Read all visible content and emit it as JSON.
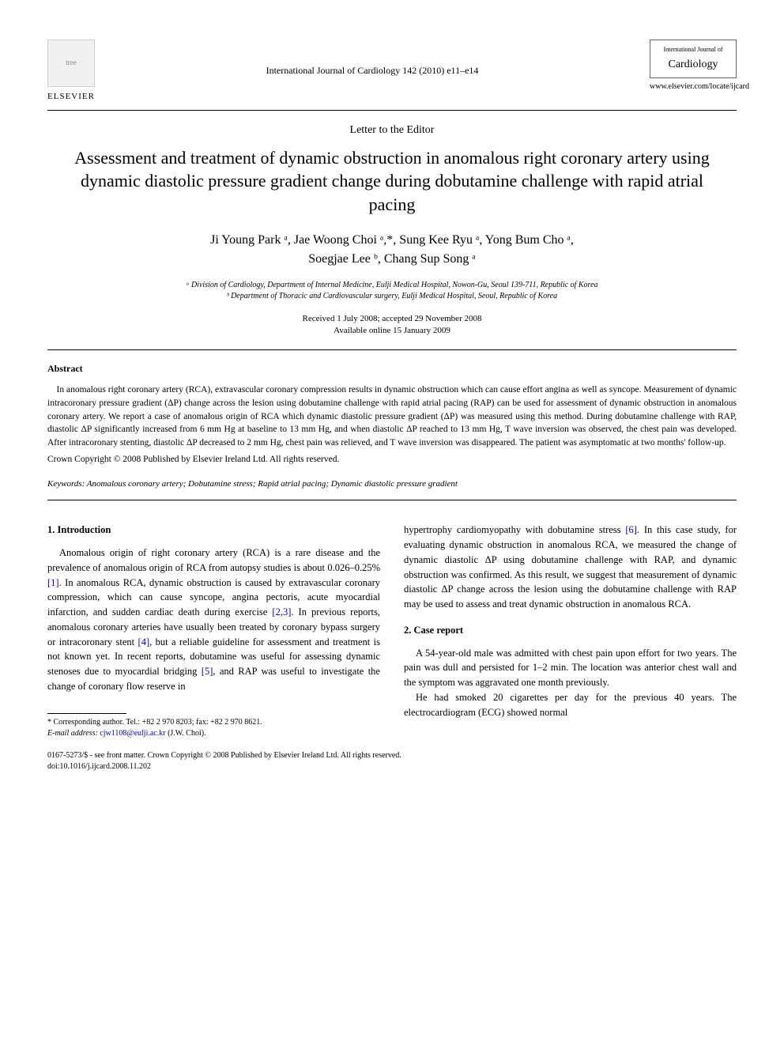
{
  "publisher": {
    "name": "ELSEVIER",
    "logo_alt": "tree"
  },
  "journal_ref": "International Journal of Cardiology 142 (2010) e11–e14",
  "journal_cover": {
    "supertitle": "International Journal of",
    "title": "Cardiology",
    "url": "www.elsevier.com/locate/ijcard"
  },
  "article_type": "Letter to the Editor",
  "title": "Assessment and treatment of dynamic obstruction in anomalous right coronary artery using dynamic diastolic pressure gradient change during dobutamine challenge with rapid atrial pacing",
  "authors_line1": "Ji Young Park ᵃ, Jae Woong Choi ᵃ,*, Sung Kee Ryu ᵃ, Yong Bum Cho ᵃ,",
  "authors_line2": "Soegjae Lee ᵇ, Chang Sup Song ᵃ",
  "affiliations": {
    "a": "ᵃ Division of Cardiology, Department of Internal Medicine, Eulji Medical Hospital, Nowon-Gu, Seoul 139-711, Republic of Korea",
    "b": "ᵇ Department of Thoracic and Cardiovascular surgery, Eulji Medical Hospital, Seoul, Republic of Korea"
  },
  "dates": {
    "received_accepted": "Received 1 July 2008; accepted 29 November 2008",
    "online": "Available online 15 January 2009"
  },
  "abstract": {
    "heading": "Abstract",
    "text": "In anomalous right coronary artery (RCA), extravascular coronary compression results in dynamic obstruction which can cause effort angina as well as syncope. Measurement of dynamic intracoronary pressure gradient (ΔP) change across the lesion using dobutamine challenge with rapid atrial pacing (RAP) can be used for assessment of dynamic obstruction in anomalous coronary artery. We report a case of anomalous origin of RCA which dynamic diastolic pressure gradient (ΔP) was measured using this method. During dobutamine challenge with RAP, diastolic ΔP significantly increased from 6 mm Hg at baseline to 13 mm Hg, and when diastolic ΔP reached to 13 mm Hg, T wave inversion was observed, the chest pain was developed. After intracoronary stenting, diastolic ΔP decreased to 2 mm Hg, chest pain was relieved, and T wave inversion was disappeared. The patient was asymptomatic at two months' follow-up.",
    "copyright": "Crown Copyright © 2008 Published by Elsevier Ireland Ltd. All rights reserved."
  },
  "keywords": "Keywords: Anomalous coronary artery; Dobutamine stress; Rapid atrial pacing; Dynamic diastolic pressure gradient",
  "body": {
    "intro_heading": "1. Introduction",
    "intro_p1_a": "Anomalous origin of right coronary artery (RCA) is a rare disease and the prevalence of anomalous origin of RCA from autopsy studies is about 0.026–0.25% ",
    "ref1": "[1]",
    "intro_p1_b": ". In anomalous RCA, dynamic obstruction is caused by extravascular coronary compression, which can cause syncope, angina pectoris, acute myocardial infarction, and sudden cardiac death during exercise ",
    "ref23": "[2,3]",
    "intro_p1_c": ". In previous reports, anomalous coronary arteries have usually been treated by coronary bypass surgery or intracoronary stent ",
    "ref4": "[4]",
    "intro_p1_d": ", but a reliable guideline for assessment and treatment is not known yet. In recent reports, dobutamine was useful for assessing dynamic stenoses due to myocardial bridging ",
    "ref5": "[5]",
    "intro_p1_e": ", and RAP was useful to investigate the change of coronary flow reserve in",
    "intro_p2_a": "hypertrophy cardiomyopathy with dobutamine stress ",
    "ref6": "[6]",
    "intro_p2_b": ". In this case study, for evaluating dynamic obstruction in anomalous RCA, we measured the change of dynamic diastolic ΔP using dobutamine challenge with RAP, and dynamic obstruction was confirmed. As this result, we suggest that measurement of dynamic diastolic ΔP change across the lesion using the dobutamine challenge with RAP may be used to assess and treat dynamic obstruction in anomalous RCA.",
    "case_heading": "2. Case report",
    "case_p1": "A 54-year-old male was admitted with chest pain upon effort for two years. The pain was dull and persisted for 1–2 min. The location was anterior chest wall and the symptom was aggravated one month previously.",
    "case_p2": "He had smoked 20 cigarettes per day for the previous 40 years. The electrocardiogram (ECG) showed normal"
  },
  "footnote": {
    "corr": "* Corresponding author. Tel.: +82 2 970 8203; fax: +82 2 970 8621.",
    "email_label": "E-mail address:",
    "email": "cjw1108@eulji.ac.kr",
    "email_person": " (J.W. Choi)."
  },
  "footer": {
    "line1": "0167-5273/$ - see front matter. Crown Copyright © 2008 Published by Elsevier Ireland Ltd. All rights reserved.",
    "line2": "doi:10.1016/j.ijcard.2008.11.202"
  },
  "colors": {
    "text": "#000000",
    "link": "#0000cc",
    "background": "#ffffff",
    "rule": "#000000"
  },
  "fontsize": {
    "title": 22,
    "authors": 16,
    "body": 12.5,
    "abstract": 11.5,
    "small": 10
  }
}
